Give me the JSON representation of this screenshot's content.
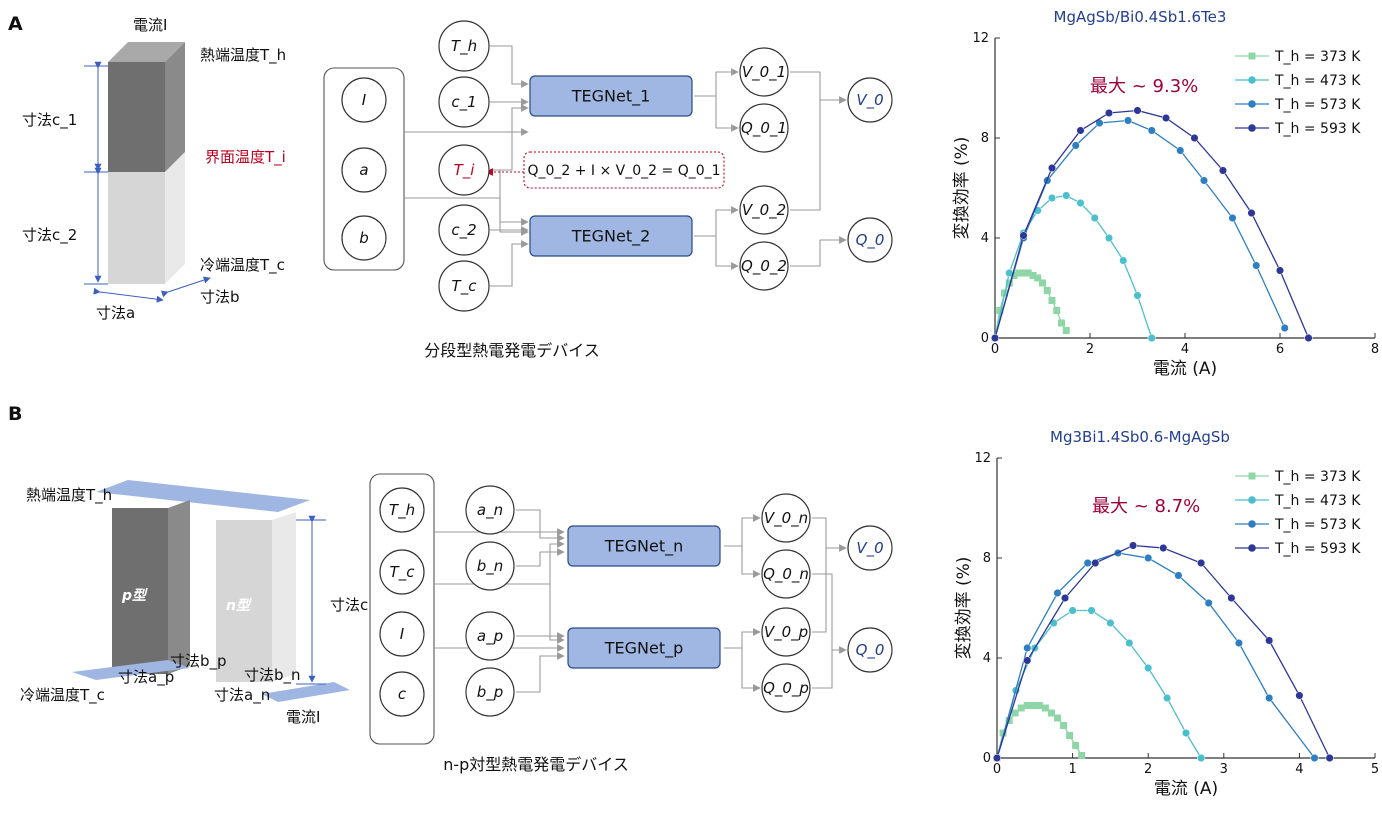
{
  "panels": {
    "a": "A",
    "b": "B"
  },
  "panel_a": {
    "device_labels": {
      "current": "電流I",
      "hot_temp": "熱端温度T_h",
      "interface_temp": "界面温度T_i",
      "cold_temp": "冷端温度T_c",
      "size_c1": "寸法c_1",
      "size_c2": "寸法c_2",
      "size_a": "寸法a",
      "size_b": "寸法b"
    },
    "inputs": [
      "I",
      "a",
      "b"
    ],
    "nodes_1": [
      "T_h",
      "c_1",
      "T_i"
    ],
    "nodes_2": [
      "c_2",
      "T_c"
    ],
    "nets": [
      "TEGNet_1",
      "TEGNet_2"
    ],
    "outputs_1": [
      "V_0_1",
      "Q_0_1"
    ],
    "outputs_2": [
      "V_0_2",
      "Q_0_2"
    ],
    "finals": [
      "V_0",
      "Q_0"
    ],
    "equation": "Q_0_2 + I × V_0_2 = Q_0_1",
    "caption": "分段型熱電発電デバイス"
  },
  "panel_b": {
    "device_labels": {
      "hot_temp": "熱端温度T_h",
      "cold_temp": "冷端温度T_c",
      "current": "電流I",
      "p_type": "p型",
      "n_type": "n型",
      "size_c": "寸法c",
      "size_ap": "寸法a_p",
      "size_bp": "寸法b_p",
      "size_an": "寸法a_n",
      "size_bn": "寸法b_n"
    },
    "inputs": [
      "T_h",
      "T_c",
      "I",
      "c"
    ],
    "nodes": [
      "a_n",
      "b_n",
      "a_p",
      "b_p"
    ],
    "nets": [
      "TEGNet_n",
      "TEGNet_p"
    ],
    "outputs": [
      "V_0_n",
      "Q_0_n",
      "V_0_p",
      "Q_0_p"
    ],
    "finals": [
      "V_0",
      "Q_0"
    ],
    "caption": "n-p対型熱電発電デバイス"
  },
  "chart_data": [
    {
      "type": "line",
      "title": "MgAgSb/Bi0.4Sb1.6Te3",
      "xlabel": "電流 (A)",
      "ylabel": "変換効率 (%)",
      "xlim": [
        0,
        8
      ],
      "ylim": [
        0,
        12
      ],
      "xticks": [
        0,
        2,
        4,
        6,
        8
      ],
      "yticks": [
        0,
        4,
        8,
        12
      ],
      "annotation": "最大 ~ 9.3%",
      "legend_position": "top-right",
      "series": [
        {
          "name": "T_h = 373 K",
          "color": "#8fd6a6",
          "marker": "square",
          "x": [
            0.0,
            0.1,
            0.2,
            0.3,
            0.4,
            0.5,
            0.6,
            0.7,
            0.8,
            0.9,
            1.0,
            1.1,
            1.2,
            1.3,
            1.4,
            1.5
          ],
          "y": [
            0.0,
            1.1,
            1.8,
            2.2,
            2.5,
            2.6,
            2.6,
            2.6,
            2.5,
            2.4,
            2.2,
            1.9,
            1.5,
            1.1,
            0.6,
            0.3
          ]
        },
        {
          "name": "T_h = 473 K",
          "color": "#4bbfcc",
          "marker": "circle",
          "x": [
            0.0,
            0.3,
            0.6,
            0.9,
            1.2,
            1.5,
            1.8,
            2.1,
            2.4,
            2.7,
            3.0,
            3.3
          ],
          "y": [
            0.0,
            2.6,
            4.2,
            5.1,
            5.6,
            5.7,
            5.4,
            4.8,
            4.0,
            3.1,
            1.7,
            0.0
          ]
        },
        {
          "name": "T_h = 573 K",
          "color": "#2e7fc2",
          "marker": "circle",
          "x": [
            0.0,
            0.6,
            1.1,
            1.7,
            2.2,
            2.8,
            3.3,
            3.9,
            4.4,
            5.0,
            5.5,
            6.1
          ],
          "y": [
            0.0,
            4.0,
            6.3,
            7.7,
            8.6,
            8.7,
            8.3,
            7.5,
            6.3,
            4.8,
            2.9,
            0.4
          ]
        },
        {
          "name": "T_h = 593 K",
          "color": "#2d3796",
          "marker": "circle",
          "x": [
            0.0,
            0.6,
            1.2,
            1.8,
            2.4,
            3.0,
            3.6,
            4.2,
            4.8,
            5.4,
            6.0,
            6.6
          ],
          "y": [
            0.0,
            4.1,
            6.8,
            8.3,
            9.0,
            9.1,
            8.8,
            8.0,
            6.7,
            5.0,
            2.7,
            0.0
          ]
        }
      ]
    },
    {
      "type": "line",
      "title": "Mg3Bi1.4Sb0.6-MgAgSb",
      "xlabel": "電流 (A)",
      "ylabel": "変換効率 (%)",
      "xlim": [
        0,
        5
      ],
      "ylim": [
        0,
        12
      ],
      "xticks": [
        0,
        1,
        2,
        3,
        4,
        5
      ],
      "yticks": [
        0,
        4,
        8,
        12
      ],
      "annotation": "最大 ~ 8.7%",
      "legend_position": "top-right",
      "series": [
        {
          "name": "T_h = 373 K",
          "color": "#8fd6a6",
          "marker": "square",
          "x": [
            0.0,
            0.08,
            0.16,
            0.24,
            0.32,
            0.4,
            0.48,
            0.56,
            0.64,
            0.72,
            0.8,
            0.88,
            0.96,
            1.04,
            1.12
          ],
          "y": [
            0.0,
            1.0,
            1.5,
            1.8,
            2.0,
            2.1,
            2.1,
            2.1,
            2.0,
            1.8,
            1.6,
            1.3,
            0.9,
            0.5,
            0.1
          ]
        },
        {
          "name": "T_h = 473 K",
          "color": "#4bbfcc",
          "marker": "circle",
          "x": [
            0.0,
            0.25,
            0.5,
            0.75,
            1.0,
            1.25,
            1.5,
            1.75,
            2.0,
            2.25,
            2.5,
            2.7
          ],
          "y": [
            0.0,
            2.7,
            4.4,
            5.4,
            5.9,
            5.9,
            5.4,
            4.6,
            3.6,
            2.4,
            1.0,
            0.0
          ]
        },
        {
          "name": "T_h = 573 K",
          "color": "#2e7fc2",
          "marker": "circle",
          "x": [
            0.0,
            0.4,
            0.8,
            1.2,
            1.6,
            2.0,
            2.4,
            2.8,
            3.2,
            3.6,
            4.2
          ],
          "y": [
            0.0,
            4.4,
            6.6,
            7.8,
            8.2,
            8.0,
            7.3,
            6.2,
            4.6,
            2.4,
            0.0
          ]
        },
        {
          "name": "T_h = 593 K",
          "color": "#2d3796",
          "marker": "circle",
          "x": [
            0.0,
            0.4,
            0.9,
            1.3,
            1.8,
            2.2,
            2.7,
            3.1,
            3.6,
            4.0,
            4.4
          ],
          "y": [
            0.0,
            3.9,
            6.4,
            7.8,
            8.5,
            8.4,
            7.8,
            6.4,
            4.7,
            2.5,
            0.0
          ]
        }
      ]
    }
  ]
}
